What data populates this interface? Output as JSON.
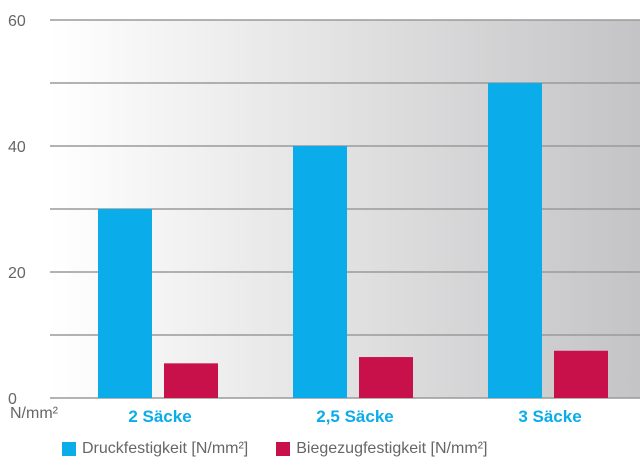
{
  "chart_data": {
    "type": "bar",
    "categories": [
      "2 Säcke",
      "2,5 Säcke",
      "3 Säcke"
    ],
    "series": [
      {
        "name": "Druckfestigkeit [N/mm²]",
        "values": [
          30,
          40,
          50
        ],
        "color": "#0aace9"
      },
      {
        "name": "Biegezugfestigkeit [N/mm²]",
        "values": [
          5.5,
          6.5,
          7.5
        ],
        "color": "#c8104a"
      }
    ],
    "yticks": [
      0,
      20,
      40,
      60
    ],
    "ylim": [
      0,
      60
    ],
    "ylabel": "N/mm²",
    "grid": true,
    "legend_position": "bottom",
    "colors": {
      "category_label": "#0aace9",
      "axis_text": "#666666",
      "gridline": "#9a9a9a"
    }
  }
}
